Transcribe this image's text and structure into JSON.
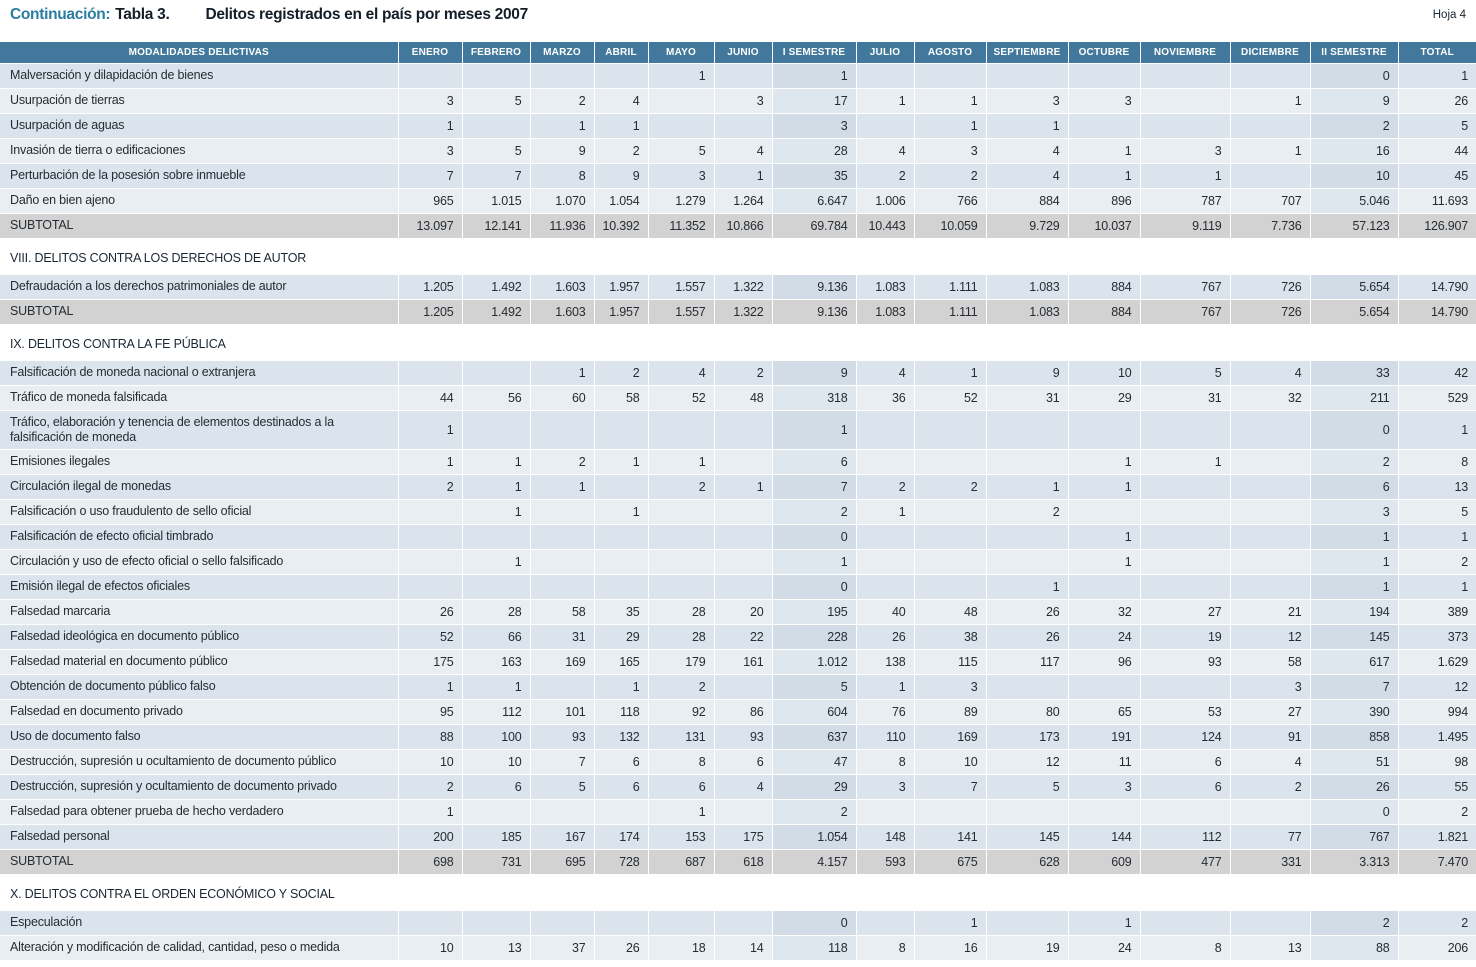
{
  "page": {
    "title_prefix": "Continuación:",
    "title_label": "Tabla 3.",
    "title_text": "Delitos registrados en el país por meses 2007",
    "sheet_label": "Hoja 4"
  },
  "table": {
    "columns": [
      "MODALIDADES DELICTIVAS",
      "ENERO",
      "FEBRERO",
      "MARZO",
      "ABRIL",
      "MAYO",
      "JUNIO",
      "I SEMESTRE",
      "JULIO",
      "AGOSTO",
      "SEPTIEMBRE",
      "OCTUBRE",
      "NOVIEMBRE",
      "DICIEMBRE",
      "II SEMESTRE",
      "TOTAL"
    ],
    "rows": [
      {
        "t": "d",
        "l": "Malversación y dilapidación de bienes",
        "v": [
          "",
          "",
          "",
          "",
          "1",
          "",
          "1",
          "",
          "",
          "",
          "",
          "",
          "",
          "0",
          "1"
        ]
      },
      {
        "t": "d",
        "l": "Usurpación de tierras",
        "v": [
          "3",
          "5",
          "2",
          "4",
          "",
          "3",
          "17",
          "1",
          "1",
          "3",
          "3",
          "",
          "1",
          "9",
          "26"
        ]
      },
      {
        "t": "d",
        "l": "Usurpación de aguas",
        "v": [
          "1",
          "",
          "1",
          "1",
          "",
          "",
          "3",
          "",
          "1",
          "1",
          "",
          "",
          "",
          "2",
          "5"
        ]
      },
      {
        "t": "d",
        "l": "Invasión de tierra o edificaciones",
        "v": [
          "3",
          "5",
          "9",
          "2",
          "5",
          "4",
          "28",
          "4",
          "3",
          "4",
          "1",
          "3",
          "1",
          "16",
          "44"
        ]
      },
      {
        "t": "d",
        "l": "Perturbación de la posesión sobre inmueble",
        "v": [
          "7",
          "7",
          "8",
          "9",
          "3",
          "1",
          "35",
          "2",
          "2",
          "4",
          "1",
          "1",
          "",
          "10",
          "45"
        ]
      },
      {
        "t": "d",
        "l": "Daño en bien ajeno",
        "v": [
          "965",
          "1.015",
          "1.070",
          "1.054",
          "1.279",
          "1.264",
          "6.647",
          "1.006",
          "766",
          "884",
          "896",
          "787",
          "707",
          "5.046",
          "11.693"
        ]
      },
      {
        "t": "s",
        "l": "SUBTOTAL",
        "v": [
          "13.097",
          "12.141",
          "11.936",
          "10.392",
          "11.352",
          "10.866",
          "69.784",
          "10.443",
          "10.059",
          "9.729",
          "10.037",
          "9.119",
          "7.736",
          "57.123",
          "126.907"
        ]
      },
      {
        "t": "h",
        "l": "VIII. DELITOS CONTRA LOS DERECHOS DE AUTOR"
      },
      {
        "t": "d",
        "l": "Defraudación a los derechos patrimoniales de autor",
        "v": [
          "1.205",
          "1.492",
          "1.603",
          "1.957",
          "1.557",
          "1.322",
          "9.136",
          "1.083",
          "1.111",
          "1.083",
          "884",
          "767",
          "726",
          "5.654",
          "14.790"
        ]
      },
      {
        "t": "s",
        "l": "SUBTOTAL",
        "v": [
          "1.205",
          "1.492",
          "1.603",
          "1.957",
          "1.557",
          "1.322",
          "9.136",
          "1.083",
          "1.111",
          "1.083",
          "884",
          "767",
          "726",
          "5.654",
          "14.790"
        ]
      },
      {
        "t": "h",
        "l": "IX. DELITOS CONTRA LA FE PÚBLICA"
      },
      {
        "t": "d",
        "l": "Falsificación de moneda nacional o extranjera",
        "v": [
          "",
          "",
          "1",
          "2",
          "4",
          "2",
          "9",
          "4",
          "1",
          "9",
          "10",
          "5",
          "4",
          "33",
          "42"
        ]
      },
      {
        "t": "d",
        "l": "Tráfico de moneda falsificada",
        "v": [
          "44",
          "56",
          "60",
          "58",
          "52",
          "48",
          "318",
          "36",
          "52",
          "31",
          "29",
          "31",
          "32",
          "211",
          "529"
        ]
      },
      {
        "t": "d",
        "l": "Tráfico, elaboración y tenencia de elementos destinados a la falsificación de moneda",
        "v": [
          "1",
          "",
          "",
          "",
          "",
          "",
          "1",
          "",
          "",
          "",
          "",
          "",
          "",
          "0",
          "1"
        ]
      },
      {
        "t": "d",
        "l": "Emisiones ilegales",
        "v": [
          "1",
          "1",
          "2",
          "1",
          "1",
          "",
          "6",
          "",
          "",
          "",
          "1",
          "1",
          "",
          "2",
          "8"
        ]
      },
      {
        "t": "d",
        "l": "Circulación ilegal de monedas",
        "v": [
          "2",
          "1",
          "1",
          "",
          "2",
          "1",
          "7",
          "2",
          "2",
          "1",
          "1",
          "",
          "",
          "6",
          "13"
        ]
      },
      {
        "t": "d",
        "l": "Falsificación o uso fraudulento de sello oficial",
        "v": [
          "",
          "1",
          "",
          "1",
          "",
          "",
          "2",
          "1",
          "",
          "2",
          "",
          "",
          "",
          "3",
          "5"
        ]
      },
      {
        "t": "d",
        "l": "Falsificación de efecto oficial timbrado",
        "v": [
          "",
          "",
          "",
          "",
          "",
          "",
          "0",
          "",
          "",
          "",
          "1",
          "",
          "",
          "1",
          "1"
        ]
      },
      {
        "t": "d",
        "l": "Circulación y uso de efecto oficial o sello falsificado",
        "v": [
          "",
          "1",
          "",
          "",
          "",
          "",
          "1",
          "",
          "",
          "",
          "1",
          "",
          "",
          "1",
          "2"
        ]
      },
      {
        "t": "d",
        "l": "Emisión ilegal de efectos oficiales",
        "v": [
          "",
          "",
          "",
          "",
          "",
          "",
          "0",
          "",
          "",
          "1",
          "",
          "",
          "",
          "1",
          "1"
        ]
      },
      {
        "t": "d",
        "l": "Falsedad marcaria",
        "v": [
          "26",
          "28",
          "58",
          "35",
          "28",
          "20",
          "195",
          "40",
          "48",
          "26",
          "32",
          "27",
          "21",
          "194",
          "389"
        ]
      },
      {
        "t": "d",
        "l": "Falsedad ideológica en documento público",
        "v": [
          "52",
          "66",
          "31",
          "29",
          "28",
          "22",
          "228",
          "26",
          "38",
          "26",
          "24",
          "19",
          "12",
          "145",
          "373"
        ]
      },
      {
        "t": "d",
        "l": "Falsedad material en documento público",
        "v": [
          "175",
          "163",
          "169",
          "165",
          "179",
          "161",
          "1.012",
          "138",
          "115",
          "117",
          "96",
          "93",
          "58",
          "617",
          "1.629"
        ]
      },
      {
        "t": "d",
        "l": "Obtención de documento público falso",
        "v": [
          "1",
          "1",
          "",
          "1",
          "2",
          "",
          "5",
          "1",
          "3",
          "",
          "",
          "",
          "3",
          "7",
          "12"
        ]
      },
      {
        "t": "d",
        "l": "Falsedad en documento privado",
        "v": [
          "95",
          "112",
          "101",
          "118",
          "92",
          "86",
          "604",
          "76",
          "89",
          "80",
          "65",
          "53",
          "27",
          "390",
          "994"
        ]
      },
      {
        "t": "d",
        "l": "Uso de documento falso",
        "v": [
          "88",
          "100",
          "93",
          "132",
          "131",
          "93",
          "637",
          "110",
          "169",
          "173",
          "191",
          "124",
          "91",
          "858",
          "1.495"
        ]
      },
      {
        "t": "d",
        "l": "Destrucción, supresión u ocultamiento de documento público",
        "v": [
          "10",
          "10",
          "7",
          "6",
          "8",
          "6",
          "47",
          "8",
          "10",
          "12",
          "11",
          "6",
          "4",
          "51",
          "98"
        ]
      },
      {
        "t": "d",
        "l": "Destrucción, supresión y ocultamiento de documento privado",
        "v": [
          "2",
          "6",
          "5",
          "6",
          "6",
          "4",
          "29",
          "3",
          "7",
          "5",
          "3",
          "6",
          "2",
          "26",
          "55"
        ]
      },
      {
        "t": "d",
        "l": "Falsedad para obtener prueba de hecho verdadero",
        "v": [
          "1",
          "",
          "",
          "",
          "1",
          "",
          "2",
          "",
          "",
          "",
          "",
          "",
          "",
          "0",
          "2"
        ]
      },
      {
        "t": "d",
        "l": "Falsedad personal",
        "v": [
          "200",
          "185",
          "167",
          "174",
          "153",
          "175",
          "1.054",
          "148",
          "141",
          "145",
          "144",
          "112",
          "77",
          "767",
          "1.821"
        ]
      },
      {
        "t": "s",
        "l": "SUBTOTAL",
        "v": [
          "698",
          "731",
          "695",
          "728",
          "687",
          "618",
          "4.157",
          "593",
          "675",
          "628",
          "609",
          "477",
          "331",
          "3.313",
          "7.470"
        ]
      },
      {
        "t": "h",
        "l": "X. DELITOS CONTRA EL ORDEN ECONÓMICO Y SOCIAL"
      },
      {
        "t": "d",
        "l": "Especulación",
        "v": [
          "",
          "",
          "",
          "",
          "",
          "",
          "0",
          "",
          "1",
          "",
          "1",
          "",
          "",
          "2",
          "2"
        ]
      },
      {
        "t": "d",
        "l": "Alteración y modificación de calidad, cantidad, peso o medida",
        "v": [
          "10",
          "13",
          "37",
          "26",
          "18",
          "14",
          "118",
          "8",
          "16",
          "19",
          "24",
          "8",
          "13",
          "88",
          "206"
        ]
      }
    ]
  }
}
